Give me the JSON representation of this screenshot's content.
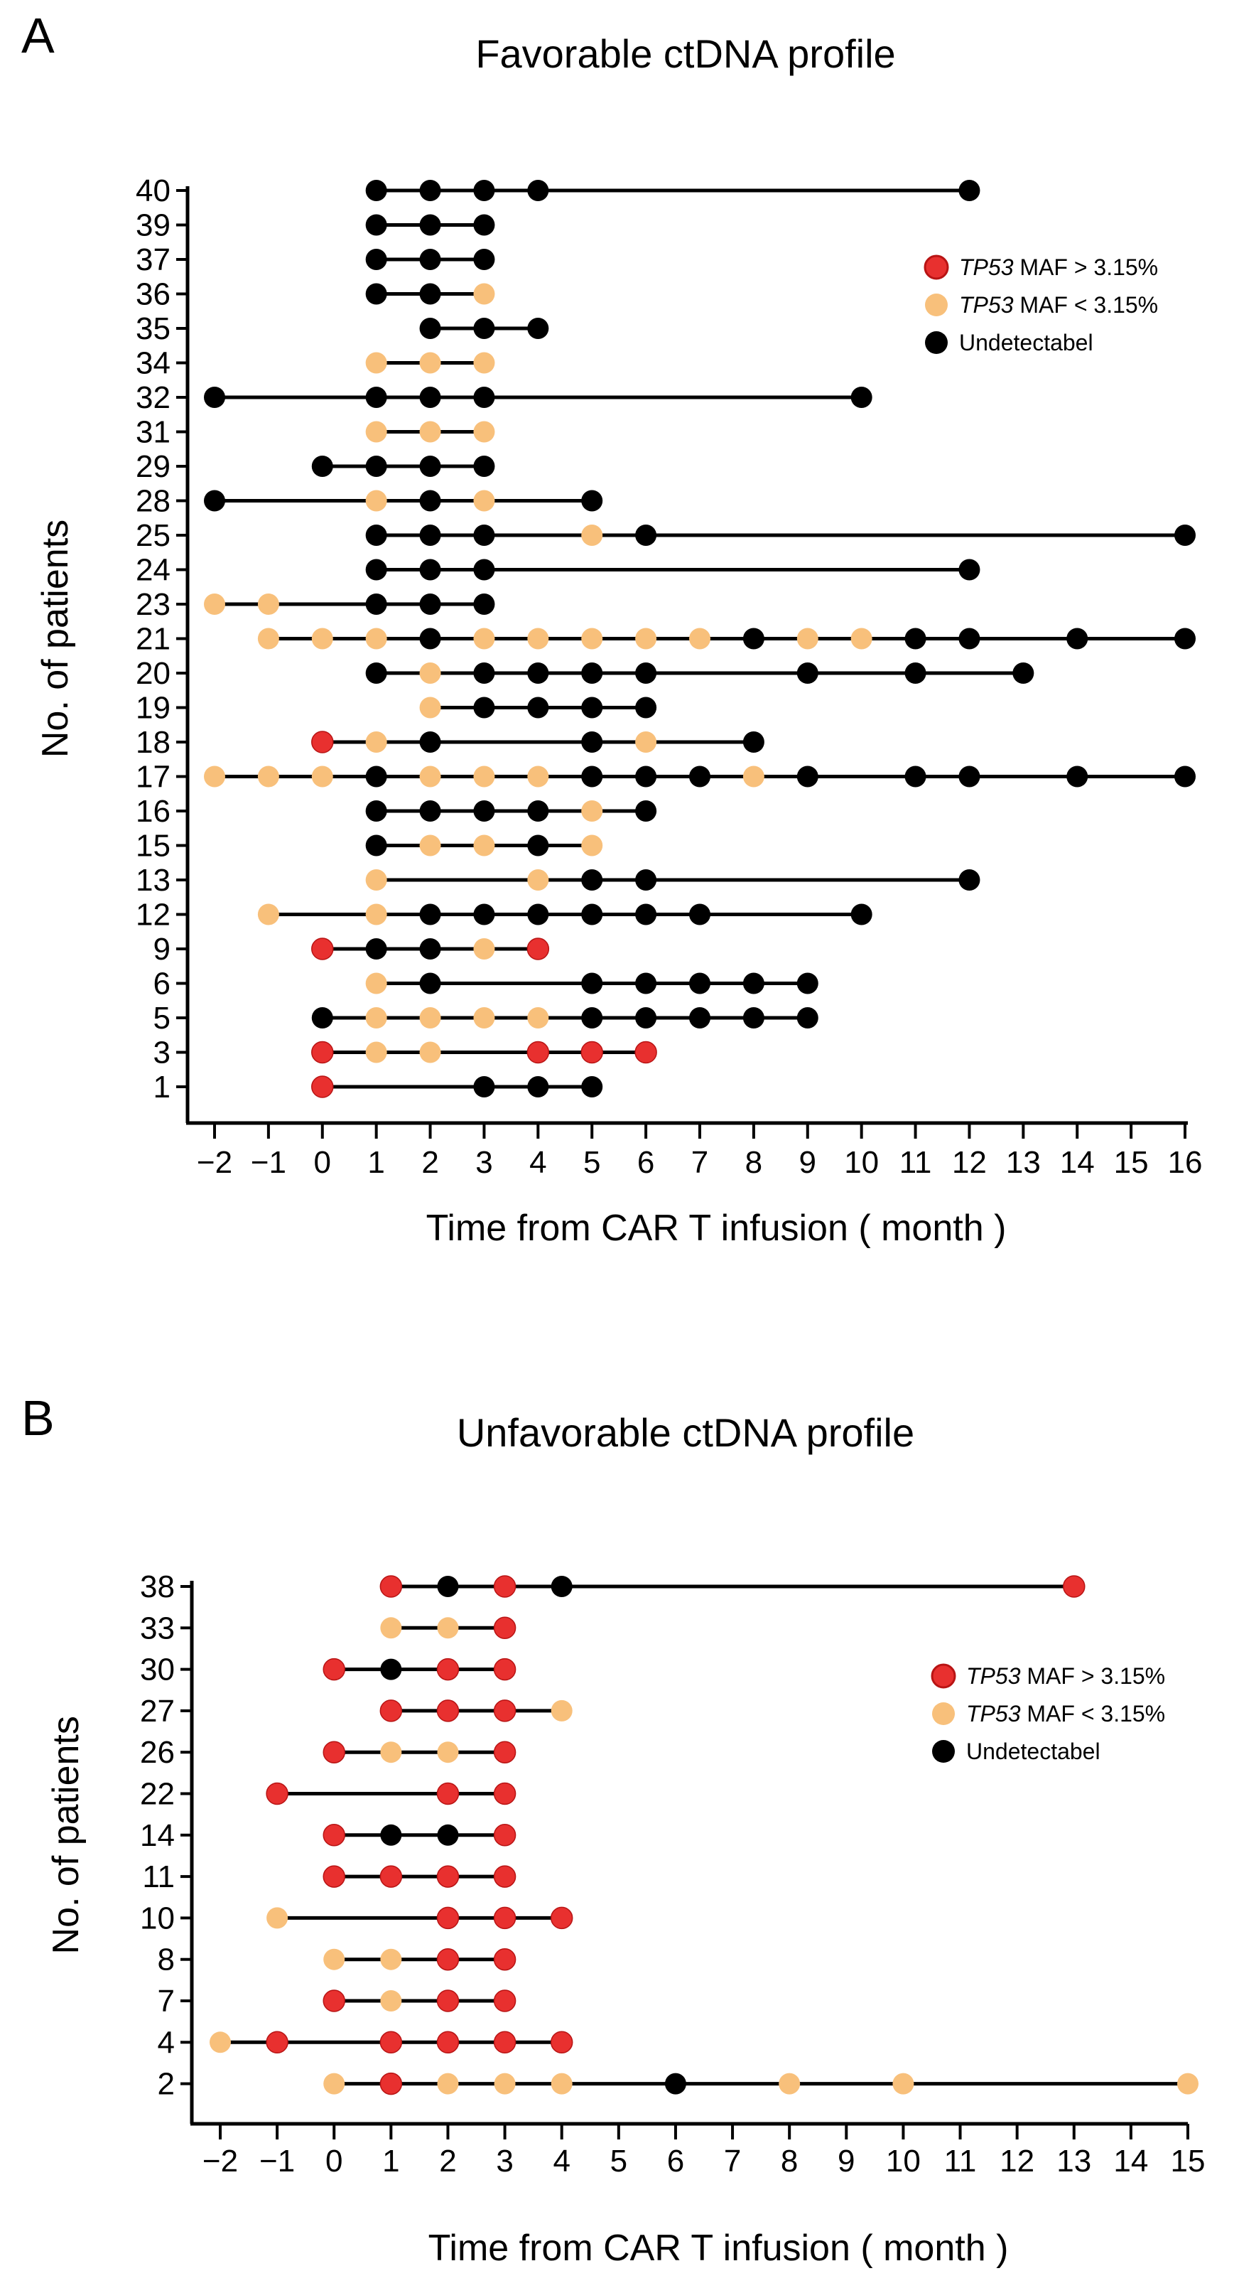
{
  "colors": {
    "high": "#e8302f",
    "high_stroke": "#b81414",
    "low": "#f8c07b",
    "undetectable": "#000000",
    "line": "#000000"
  },
  "legend_labels": [
    {
      "gene": "TP53",
      "text": " MAF > 3.15%",
      "category": "high"
    },
    {
      "gene": "TP53",
      "text": " MAF < 3.15%",
      "category": "low"
    },
    {
      "gene": "",
      "text": "Undetectabel",
      "category": "undetectable"
    }
  ],
  "chart_data": [
    {
      "panel": "A",
      "type": "scatter",
      "title": "Favorable ctDNA profile",
      "xlabel": "Time from CAR T infusion ( month )",
      "ylabel": "No. of patients",
      "xlim": [
        -2,
        16
      ],
      "xticks": [
        -2,
        -1,
        0,
        1,
        2,
        3,
        4,
        5,
        6,
        7,
        8,
        9,
        10,
        11,
        12,
        13,
        14,
        15,
        16
      ],
      "legend_position": "top-right",
      "patients": [
        {
          "id": "40",
          "points": [
            [
              1,
              "U"
            ],
            [
              2,
              "U"
            ],
            [
              3,
              "U"
            ],
            [
              4,
              "U"
            ],
            [
              12,
              "U"
            ]
          ]
        },
        {
          "id": "39",
          "points": [
            [
              1,
              "U"
            ],
            [
              2,
              "U"
            ],
            [
              3,
              "U"
            ]
          ]
        },
        {
          "id": "37",
          "points": [
            [
              1,
              "U"
            ],
            [
              2,
              "U"
            ],
            [
              3,
              "U"
            ]
          ]
        },
        {
          "id": "36",
          "points": [
            [
              1,
              "U"
            ],
            [
              2,
              "U"
            ],
            [
              3,
              "L"
            ]
          ]
        },
        {
          "id": "35",
          "points": [
            [
              2,
              "U"
            ],
            [
              3,
              "U"
            ],
            [
              4,
              "U"
            ]
          ]
        },
        {
          "id": "34",
          "points": [
            [
              1,
              "L"
            ],
            [
              2,
              "L"
            ],
            [
              3,
              "L"
            ]
          ]
        },
        {
          "id": "32",
          "points": [
            [
              -2,
              "U"
            ],
            [
              1,
              "U"
            ],
            [
              2,
              "U"
            ],
            [
              3,
              "U"
            ],
            [
              10,
              "U"
            ]
          ]
        },
        {
          "id": "31",
          "points": [
            [
              1,
              "L"
            ],
            [
              2,
              "L"
            ],
            [
              3,
              "L"
            ]
          ]
        },
        {
          "id": "29",
          "points": [
            [
              0,
              "U"
            ],
            [
              1,
              "U"
            ],
            [
              2,
              "U"
            ],
            [
              3,
              "U"
            ]
          ]
        },
        {
          "id": "28",
          "points": [
            [
              -2,
              "U"
            ],
            [
              1,
              "L"
            ],
            [
              2,
              "U"
            ],
            [
              3,
              "L"
            ],
            [
              5,
              "U"
            ]
          ]
        },
        {
          "id": "25",
          "points": [
            [
              1,
              "U"
            ],
            [
              2,
              "U"
            ],
            [
              3,
              "U"
            ],
            [
              5,
              "L"
            ],
            [
              6,
              "U"
            ],
            [
              16,
              "U"
            ]
          ]
        },
        {
          "id": "24",
          "points": [
            [
              1,
              "U"
            ],
            [
              2,
              "U"
            ],
            [
              3,
              "U"
            ],
            [
              12,
              "U"
            ]
          ]
        },
        {
          "id": "23",
          "points": [
            [
              -2,
              "L"
            ],
            [
              -1,
              "L"
            ],
            [
              1,
              "U"
            ],
            [
              2,
              "U"
            ],
            [
              3,
              "U"
            ]
          ]
        },
        {
          "id": "21",
          "points": [
            [
              -1,
              "L"
            ],
            [
              0,
              "L"
            ],
            [
              1,
              "L"
            ],
            [
              2,
              "U"
            ],
            [
              3,
              "L"
            ],
            [
              4,
              "L"
            ],
            [
              5,
              "L"
            ],
            [
              6,
              "L"
            ],
            [
              7,
              "L"
            ],
            [
              8,
              "U"
            ],
            [
              9,
              "L"
            ],
            [
              10,
              "L"
            ],
            [
              11,
              "U"
            ],
            [
              12,
              "U"
            ],
            [
              14,
              "U"
            ],
            [
              16,
              "U"
            ]
          ]
        },
        {
          "id": "20",
          "points": [
            [
              1,
              "U"
            ],
            [
              2,
              "L"
            ],
            [
              3,
              "U"
            ],
            [
              4,
              "U"
            ],
            [
              5,
              "U"
            ],
            [
              6,
              "U"
            ],
            [
              9,
              "U"
            ],
            [
              11,
              "U"
            ],
            [
              13,
              "U"
            ]
          ]
        },
        {
          "id": "19",
          "points": [
            [
              2,
              "L"
            ],
            [
              3,
              "U"
            ],
            [
              4,
              "U"
            ],
            [
              5,
              "U"
            ],
            [
              6,
              "U"
            ]
          ]
        },
        {
          "id": "18",
          "points": [
            [
              0,
              "H"
            ],
            [
              1,
              "L"
            ],
            [
              2,
              "U"
            ],
            [
              5,
              "U"
            ],
            [
              6,
              "L"
            ],
            [
              8,
              "U"
            ]
          ]
        },
        {
          "id": "17",
          "points": [
            [
              -2,
              "L"
            ],
            [
              -1,
              "L"
            ],
            [
              0,
              "L"
            ],
            [
              1,
              "U"
            ],
            [
              2,
              "L"
            ],
            [
              3,
              "L"
            ],
            [
              4,
              "L"
            ],
            [
              5,
              "U"
            ],
            [
              6,
              "U"
            ],
            [
              7,
              "U"
            ],
            [
              8,
              "L"
            ],
            [
              9,
              "U"
            ],
            [
              11,
              "U"
            ],
            [
              12,
              "U"
            ],
            [
              14,
              "U"
            ],
            [
              16,
              "U"
            ]
          ]
        },
        {
          "id": "16",
          "points": [
            [
              1,
              "U"
            ],
            [
              2,
              "U"
            ],
            [
              3,
              "U"
            ],
            [
              4,
              "U"
            ],
            [
              5,
              "L"
            ],
            [
              6,
              "U"
            ]
          ]
        },
        {
          "id": "15",
          "points": [
            [
              1,
              "U"
            ],
            [
              2,
              "L"
            ],
            [
              3,
              "L"
            ],
            [
              4,
              "U"
            ],
            [
              5,
              "L"
            ]
          ]
        },
        {
          "id": "13",
          "points": [
            [
              1,
              "L"
            ],
            [
              4,
              "L"
            ],
            [
              5,
              "U"
            ],
            [
              6,
              "U"
            ],
            [
              12,
              "U"
            ]
          ]
        },
        {
          "id": "12",
          "points": [
            [
              -1,
              "L"
            ],
            [
              1,
              "L"
            ],
            [
              2,
              "U"
            ],
            [
              3,
              "U"
            ],
            [
              4,
              "U"
            ],
            [
              5,
              "U"
            ],
            [
              6,
              "U"
            ],
            [
              7,
              "U"
            ],
            [
              10,
              "U"
            ]
          ]
        },
        {
          "id": "9",
          "points": [
            [
              0,
              "H"
            ],
            [
              1,
              "U"
            ],
            [
              2,
              "U"
            ],
            [
              3,
              "L"
            ],
            [
              4,
              "H"
            ]
          ]
        },
        {
          "id": "6",
          "points": [
            [
              1,
              "L"
            ],
            [
              2,
              "U"
            ],
            [
              5,
              "U"
            ],
            [
              6,
              "U"
            ],
            [
              7,
              "U"
            ],
            [
              8,
              "U"
            ],
            [
              9,
              "U"
            ]
          ]
        },
        {
          "id": "5",
          "points": [
            [
              0,
              "U"
            ],
            [
              1,
              "L"
            ],
            [
              2,
              "L"
            ],
            [
              3,
              "L"
            ],
            [
              4,
              "L"
            ],
            [
              5,
              "U"
            ],
            [
              6,
              "U"
            ],
            [
              7,
              "U"
            ],
            [
              8,
              "U"
            ],
            [
              9,
              "U"
            ]
          ]
        },
        {
          "id": "3",
          "points": [
            [
              0,
              "H"
            ],
            [
              1,
              "L"
            ],
            [
              2,
              "L"
            ],
            [
              4,
              "H"
            ],
            [
              5,
              "H"
            ],
            [
              6,
              "H"
            ]
          ]
        },
        {
          "id": "1",
          "points": [
            [
              0,
              "H"
            ],
            [
              3,
              "U"
            ],
            [
              4,
              "U"
            ],
            [
              5,
              "U"
            ]
          ]
        }
      ]
    },
    {
      "panel": "B",
      "type": "scatter",
      "title": "Unfavorable ctDNA profile",
      "xlabel": "Time from CAR T infusion ( month )",
      "ylabel": "No. of patients",
      "xlim": [
        -2,
        15
      ],
      "xticks": [
        -2,
        -1,
        0,
        1,
        2,
        3,
        4,
        5,
        6,
        7,
        8,
        9,
        10,
        11,
        12,
        13,
        14,
        15
      ],
      "legend_position": "top-right",
      "patients": [
        {
          "id": "38",
          "points": [
            [
              1,
              "H"
            ],
            [
              2,
              "U"
            ],
            [
              3,
              "H"
            ],
            [
              4,
              "U"
            ],
            [
              13,
              "H"
            ]
          ]
        },
        {
          "id": "33",
          "points": [
            [
              1,
              "L"
            ],
            [
              2,
              "L"
            ],
            [
              3,
              "H"
            ]
          ]
        },
        {
          "id": "30",
          "points": [
            [
              0,
              "H"
            ],
            [
              1,
              "U"
            ],
            [
              2,
              "H"
            ],
            [
              3,
              "H"
            ]
          ]
        },
        {
          "id": "27",
          "points": [
            [
              1,
              "H"
            ],
            [
              2,
              "H"
            ],
            [
              3,
              "H"
            ],
            [
              4,
              "L"
            ]
          ]
        },
        {
          "id": "26",
          "points": [
            [
              0,
              "H"
            ],
            [
              1,
              "L"
            ],
            [
              2,
              "L"
            ],
            [
              3,
              "H"
            ]
          ]
        },
        {
          "id": "22",
          "points": [
            [
              -1,
              "H"
            ],
            [
              2,
              "H"
            ],
            [
              3,
              "H"
            ]
          ]
        },
        {
          "id": "14",
          "points": [
            [
              0,
              "H"
            ],
            [
              1,
              "U"
            ],
            [
              2,
              "U"
            ],
            [
              3,
              "H"
            ]
          ]
        },
        {
          "id": "11",
          "points": [
            [
              0,
              "H"
            ],
            [
              1,
              "H"
            ],
            [
              2,
              "H"
            ],
            [
              3,
              "H"
            ]
          ]
        },
        {
          "id": "10",
          "points": [
            [
              -1,
              "L"
            ],
            [
              2,
              "H"
            ],
            [
              3,
              "H"
            ],
            [
              4,
              "H"
            ]
          ]
        },
        {
          "id": "8",
          "points": [
            [
              0,
              "L"
            ],
            [
              1,
              "L"
            ],
            [
              2,
              "H"
            ],
            [
              3,
              "H"
            ]
          ]
        },
        {
          "id": "7",
          "points": [
            [
              0,
              "H"
            ],
            [
              1,
              "L"
            ],
            [
              2,
              "H"
            ],
            [
              3,
              "H"
            ]
          ]
        },
        {
          "id": "4",
          "points": [
            [
              -2,
              "L"
            ],
            [
              -1,
              "H"
            ],
            [
              1,
              "H"
            ],
            [
              2,
              "H"
            ],
            [
              3,
              "H"
            ],
            [
              4,
              "H"
            ]
          ]
        },
        {
          "id": "2",
          "points": [
            [
              0,
              "L"
            ],
            [
              1,
              "H"
            ],
            [
              2,
              "L"
            ],
            [
              3,
              "L"
            ],
            [
              4,
              "L"
            ],
            [
              6,
              "U"
            ],
            [
              8,
              "L"
            ],
            [
              10,
              "L"
            ],
            [
              15,
              "L"
            ]
          ]
        }
      ]
    }
  ]
}
